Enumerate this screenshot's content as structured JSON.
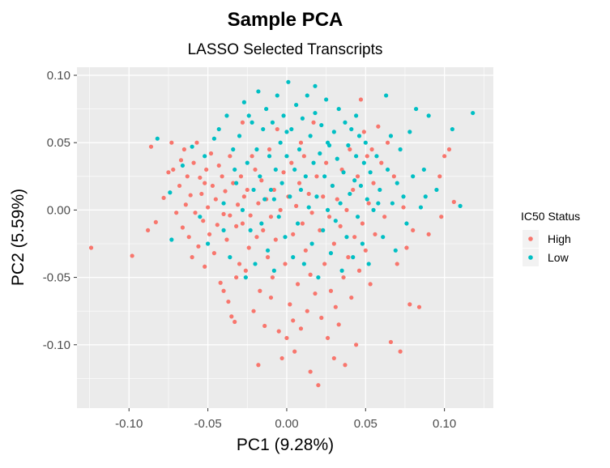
{
  "chart_data": {
    "type": "scatter",
    "title": "Sample PCA",
    "subtitle": "LASSO Selected Transcripts",
    "xlabel": "PC1 (9.28%)",
    "ylabel": "PC2 (5.59%)",
    "xlim": [
      -0.133,
      0.131
    ],
    "ylim": [
      -0.147,
      0.106
    ],
    "xticks": [
      -0.1,
      -0.05,
      0.0,
      0.05,
      0.1
    ],
    "xtick_labels": [
      "-0.10",
      "-0.05",
      "0.00",
      "0.05",
      "0.10"
    ],
    "yticks": [
      -0.1,
      -0.05,
      0.0,
      0.05,
      0.1
    ],
    "ytick_labels": [
      "-0.10",
      "-0.05",
      "0.00",
      "0.05",
      "0.10"
    ],
    "grid": true,
    "legend": {
      "title": "IC50 Status",
      "position": "right",
      "entries": [
        {
          "label": "High",
          "color": "#F8766D"
        },
        {
          "label": "Low",
          "color": "#00BFC4"
        }
      ]
    },
    "series": [
      {
        "name": "High",
        "color": "#F8766D",
        "points": [
          [
            -0.124,
            -0.028
          ],
          [
            -0.098,
            -0.034
          ],
          [
            -0.088,
            -0.015
          ],
          [
            -0.086,
            0.047
          ],
          [
            -0.083,
            -0.009
          ],
          [
            -0.078,
            0.009
          ],
          [
            -0.075,
            0.028
          ],
          [
            -0.073,
            0.05
          ],
          [
            -0.072,
            0.03
          ],
          [
            -0.07,
            -0.002
          ],
          [
            -0.068,
            0.018
          ],
          [
            -0.067,
            0.037
          ],
          [
            -0.066,
            -0.013
          ],
          [
            -0.065,
            0.045
          ],
          [
            -0.064,
            0.004
          ],
          [
            -0.063,
            0.025
          ],
          [
            -0.062,
            -0.02
          ],
          [
            -0.061,
            0.011
          ],
          [
            -0.06,
            -0.035
          ],
          [
            -0.059,
            0.035
          ],
          [
            -0.058,
            -0.002
          ],
          [
            -0.057,
            0.05
          ],
          [
            -0.056,
            -0.027
          ],
          [
            -0.055,
            0.024
          ],
          [
            -0.054,
            0.012
          ],
          [
            -0.053,
            -0.008
          ],
          [
            -0.052,
            -0.042
          ],
          [
            -0.051,
            0.03
          ],
          [
            -0.05,
            0.002
          ],
          [
            -0.049,
            -0.018
          ],
          [
            -0.048,
            0.042
          ],
          [
            -0.047,
            0.018
          ],
          [
            -0.046,
            -0.032
          ],
          [
            -0.045,
            0.008
          ],
          [
            -0.044,
            -0.011
          ],
          [
            -0.043,
            0.033
          ],
          [
            -0.042,
            -0.054
          ],
          [
            -0.041,
            0.025
          ],
          [
            -0.04,
            -0.003
          ],
          [
            -0.039,
            0.014
          ],
          [
            -0.038,
            -0.022
          ],
          [
            -0.037,
            -0.068
          ],
          [
            -0.036,
            0.04
          ],
          [
            -0.035,
            -0.079
          ],
          [
            -0.034,
            0.02
          ],
          [
            -0.033,
            -0.083
          ],
          [
            -0.032,
            -0.012
          ],
          [
            -0.031,
            0.004
          ],
          [
            -0.03,
            -0.04
          ],
          [
            -0.029,
            0.025
          ],
          [
            -0.028,
            -0.01
          ],
          [
            -0.027,
            0.01
          ],
          [
            -0.026,
            -0.045
          ],
          [
            -0.025,
            0.015
          ],
          [
            -0.024,
            -0.028
          ],
          [
            -0.023,
            -0.004
          ],
          [
            -0.022,
            0.04
          ],
          [
            -0.021,
            -0.075
          ],
          [
            -0.02,
            0.03
          ],
          [
            -0.019,
            -0.02
          ],
          [
            -0.018,
            0.005
          ],
          [
            -0.017,
            -0.06
          ],
          [
            -0.016,
            0.022
          ],
          [
            -0.015,
            -0.015
          ],
          [
            -0.014,
            -0.086
          ],
          [
            -0.013,
            0.008
          ],
          [
            -0.012,
            -0.035
          ],
          [
            -0.011,
            0.045
          ],
          [
            -0.01,
            -0.005
          ],
          [
            -0.009,
            -0.05
          ],
          [
            -0.008,
            0.015
          ],
          [
            -0.007,
            -0.022
          ],
          [
            -0.006,
            0.06
          ],
          [
            -0.005,
            -0.09
          ],
          [
            -0.004,
            0.0
          ],
          [
            -0.003,
            -0.11
          ],
          [
            -0.002,
            0.028
          ],
          [
            -0.001,
            -0.04
          ],
          [
            0.0,
            -0.095
          ],
          [
            0.001,
            0.01
          ],
          [
            0.002,
            -0.07
          ],
          [
            0.003,
            0.035
          ],
          [
            0.004,
            -0.018
          ],
          [
            0.005,
            -0.105
          ],
          [
            0.006,
            0.003
          ],
          [
            0.007,
            -0.055
          ],
          [
            0.008,
            0.02
          ],
          [
            0.009,
            -0.088
          ],
          [
            0.01,
            -0.01
          ],
          [
            0.011,
            0.04
          ],
          [
            0.012,
            -0.03
          ],
          [
            0.013,
            -0.075
          ],
          [
            0.014,
            0.012
          ],
          [
            0.015,
            -0.048
          ],
          [
            0.016,
            -0.002
          ],
          [
            0.017,
            0.065
          ],
          [
            0.018,
            -0.062
          ],
          [
            0.019,
            0.025
          ],
          [
            0.02,
            -0.13
          ],
          [
            0.021,
            -0.015
          ],
          [
            0.022,
            -0.08
          ],
          [
            0.023,
            0.01
          ],
          [
            0.024,
            -0.04
          ],
          [
            0.025,
            0.035
          ],
          [
            0.026,
            -0.095
          ],
          [
            0.027,
            -0.005
          ],
          [
            0.028,
            -0.06
          ],
          [
            0.029,
            0.018
          ],
          [
            0.03,
            -0.025
          ],
          [
            0.031,
            -0.072
          ],
          [
            0.032,
            0.008
          ],
          [
            0.033,
            -0.085
          ],
          [
            0.034,
            -0.012
          ],
          [
            0.035,
            0.03
          ],
          [
            0.036,
            -0.05
          ],
          [
            0.037,
            -0.115
          ],
          [
            0.038,
            0.0
          ],
          [
            0.039,
            -0.035
          ],
          [
            0.04,
            0.045
          ],
          [
            0.041,
            -0.065
          ],
          [
            0.042,
            0.015
          ],
          [
            0.043,
            -0.02
          ],
          [
            0.044,
            -0.1
          ],
          [
            0.045,
            0.025
          ],
          [
            0.046,
            -0.045
          ],
          [
            0.047,
            0.082
          ],
          [
            0.048,
            -0.01
          ],
          [
            0.049,
            0.058
          ],
          [
            0.05,
            -0.03
          ],
          [
            0.051,
            0.04
          ],
          [
            0.052,
            0.005
          ],
          [
            0.053,
            -0.055
          ],
          [
            0.054,
            0.045
          ],
          [
            0.055,
            0.02
          ],
          [
            0.056,
            -0.018
          ],
          [
            0.058,
            0.062
          ],
          [
            0.06,
            0.035
          ],
          [
            0.062,
            -0.005
          ],
          [
            0.064,
            0.05
          ],
          [
            0.066,
            -0.098
          ],
          [
            0.068,
            0.025
          ],
          [
            0.07,
            -0.04
          ],
          [
            0.072,
            -0.105
          ],
          [
            0.074,
            0.002
          ],
          [
            0.076,
            -0.028
          ],
          [
            0.078,
            -0.07
          ],
          [
            0.08,
            -0.015
          ],
          [
            0.084,
            -0.072
          ],
          [
            0.09,
            -0.018
          ],
          [
            0.097,
            0.025
          ],
          [
            0.1,
            0.04
          ],
          [
            0.103,
            0.045
          ],
          [
            0.106,
            0.006
          ],
          [
            0.098,
            -0.005
          ],
          [
            -0.018,
            -0.115
          ],
          [
            -0.032,
            -0.05
          ],
          [
            -0.01,
            -0.065
          ],
          [
            0.004,
            -0.082
          ],
          [
            0.015,
            -0.12
          ],
          [
            -0.028,
            0.065
          ],
          [
            -0.04,
            -0.06
          ],
          [
            -0.052,
            0.02
          ],
          [
            -0.036,
            -0.004
          ],
          [
            0.009,
            0.05
          ],
          [
            0.03,
            -0.11
          ]
        ]
      },
      {
        "name": "Low",
        "color": "#00BFC4",
        "points": [
          [
            -0.082,
            0.053
          ],
          [
            -0.073,
            -0.022
          ],
          [
            -0.074,
            0.013
          ],
          [
            -0.066,
            0.033
          ],
          [
            -0.06,
            0.047
          ],
          [
            -0.055,
            -0.005
          ],
          [
            -0.052,
            0.04
          ],
          [
            -0.05,
            -0.025
          ],
          [
            -0.046,
            0.053
          ],
          [
            -0.043,
            0.06
          ],
          [
            -0.04,
            0.005
          ],
          [
            -0.038,
            0.07
          ],
          [
            -0.036,
            -0.035
          ],
          [
            -0.034,
            0.045
          ],
          [
            -0.032,
            0.02
          ],
          [
            -0.03,
            0.055
          ],
          [
            -0.028,
            0.0
          ],
          [
            -0.027,
            0.08
          ],
          [
            -0.025,
            0.035
          ],
          [
            -0.023,
            -0.015
          ],
          [
            -0.022,
            0.065
          ],
          [
            -0.021,
            0.015
          ],
          [
            -0.02,
            -0.04
          ],
          [
            -0.019,
            0.045
          ],
          [
            -0.018,
            0.088
          ],
          [
            -0.017,
            0.025
          ],
          [
            -0.016,
            -0.01
          ],
          [
            -0.015,
            0.06
          ],
          [
            -0.014,
            0.008
          ],
          [
            -0.013,
            0.075
          ],
          [
            -0.012,
            -0.03
          ],
          [
            -0.011,
            0.04
          ],
          [
            -0.01,
            0.015
          ],
          [
            -0.009,
            0.065
          ],
          [
            -0.008,
            -0.045
          ],
          [
            -0.007,
            0.03
          ],
          [
            -0.006,
            0.085
          ],
          [
            -0.005,
            -0.005
          ],
          [
            -0.004,
            0.05
          ],
          [
            -0.003,
            0.02
          ],
          [
            -0.002,
            0.07
          ],
          [
            -0.001,
            -0.02
          ],
          [
            0.0,
            0.04
          ],
          [
            0.001,
            0.095
          ],
          [
            0.002,
            0.01
          ],
          [
            0.003,
            0.06
          ],
          [
            0.004,
            -0.035
          ],
          [
            0.005,
            0.03
          ],
          [
            0.006,
            0.078
          ],
          [
            0.007,
            -0.01
          ],
          [
            0.008,
            0.045
          ],
          [
            0.009,
            0.015
          ],
          [
            0.01,
            0.068
          ],
          [
            0.011,
            -0.04
          ],
          [
            0.012,
            0.025
          ],
          [
            0.013,
            0.085
          ],
          [
            0.014,
            0.002
          ],
          [
            0.015,
            0.055
          ],
          [
            0.016,
            -0.025
          ],
          [
            0.017,
            0.035
          ],
          [
            0.018,
            0.072
          ],
          [
            0.019,
            0.01
          ],
          [
            0.02,
            -0.05
          ],
          [
            0.021,
            0.042
          ],
          [
            0.022,
            0.063
          ],
          [
            0.023,
            -0.015
          ],
          [
            0.024,
            0.025
          ],
          [
            0.025,
            0.082
          ],
          [
            0.026,
            0.0
          ],
          [
            0.027,
            0.048
          ],
          [
            0.028,
            -0.032
          ],
          [
            0.029,
            0.018
          ],
          [
            0.03,
            0.058
          ],
          [
            0.031,
            -0.008
          ],
          [
            0.032,
            0.038
          ],
          [
            0.033,
            0.075
          ],
          [
            0.034,
            0.005
          ],
          [
            0.035,
            -0.045
          ],
          [
            0.036,
            0.028
          ],
          [
            0.037,
            0.065
          ],
          [
            0.038,
            -0.02
          ],
          [
            0.039,
            0.048
          ],
          [
            0.04,
            0.012
          ],
          [
            0.041,
            0.06
          ],
          [
            0.042,
            -0.035
          ],
          [
            0.043,
            0.022
          ],
          [
            0.044,
            0.04
          ],
          [
            0.045,
            -0.005
          ],
          [
            0.046,
            0.055
          ],
          [
            0.047,
            0.018
          ],
          [
            0.048,
            -0.025
          ],
          [
            0.049,
            0.035
          ],
          [
            0.05,
            0.05
          ],
          [
            0.051,
            0.008
          ],
          [
            0.052,
            -0.04
          ],
          [
            0.053,
            0.028
          ],
          [
            0.055,
            0.0
          ],
          [
            0.057,
            0.04
          ],
          [
            0.059,
            0.015
          ],
          [
            0.061,
            -0.02
          ],
          [
            0.063,
            0.085
          ],
          [
            0.064,
            0.03
          ],
          [
            0.066,
            0.055
          ],
          [
            0.067,
            0.005
          ],
          [
            0.069,
            -0.03
          ],
          [
            0.07,
            0.02
          ],
          [
            0.072,
            0.045
          ],
          [
            0.074,
            0.01
          ],
          [
            0.076,
            -0.01
          ],
          [
            0.078,
            0.058
          ],
          [
            0.08,
            0.025
          ],
          [
            0.082,
            0.075
          ],
          [
            0.085,
            0.002
          ],
          [
            0.087,
            0.03
          ],
          [
            0.09,
            0.07
          ],
          [
            0.095,
            0.015
          ],
          [
            0.105,
            0.06
          ],
          [
            0.11,
            0.003
          ],
          [
            0.118,
            0.072
          ],
          [
            0.088,
            0.01
          ],
          [
            -0.024,
            0.07
          ],
          [
            -0.008,
            0.008
          ],
          [
            0.0,
            0.058
          ],
          [
            0.018,
            0.092
          ],
          [
            -0.04,
            -0.015
          ],
          [
            -0.026,
            -0.05
          ],
          [
            0.026,
            0.05
          ],
          [
            0.044,
            0.07
          ],
          [
            0.058,
            0.005
          ],
          [
            -0.033,
            0.03
          ]
        ]
      }
    ]
  }
}
